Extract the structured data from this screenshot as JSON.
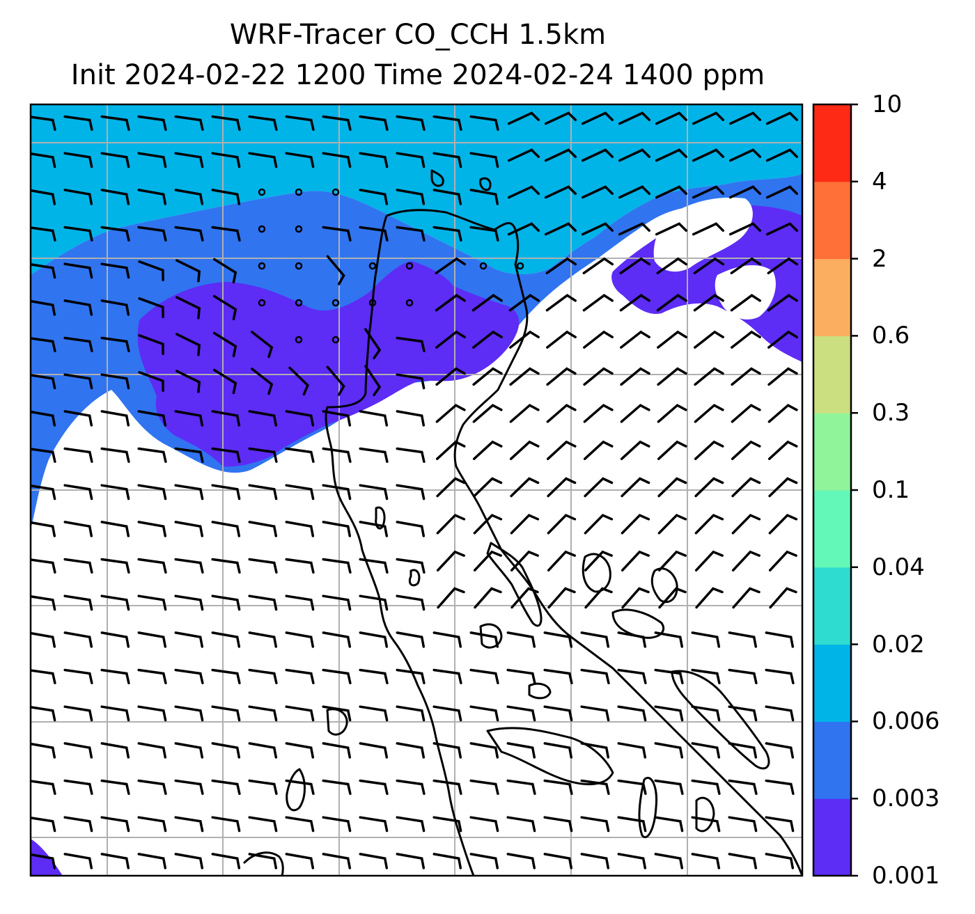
{
  "title": {
    "line1": "WRF-Tracer CO_CCH 1.5km",
    "line2": "Init 2024-02-22 1200 Time 2024-02-24 1400 ppm"
  },
  "colorbar": {
    "levels": [
      "0.001",
      "0.003",
      "0.006",
      "0.02",
      "0.04",
      "0.1",
      "0.3",
      "0.6",
      "2",
      "4",
      "10"
    ],
    "colors": [
      "#5d2cf5",
      "#3074f0",
      "#00b4e8",
      "#2fdcd0",
      "#64f8b8",
      "#90f49a",
      "#ccdf80",
      "#fcae60",
      "#fe7038",
      "#fe2a15"
    ]
  },
  "map": {
    "contour_colors": {
      "level_0_001": "#5d2cf5",
      "level_0_003": "#3074f0",
      "level_0_006": "#00b4e8"
    },
    "gridline_color": "#b0b0b0",
    "coastline_color": "#000000",
    "wind_barbs": "calm-circles-and-half-barbs"
  }
}
